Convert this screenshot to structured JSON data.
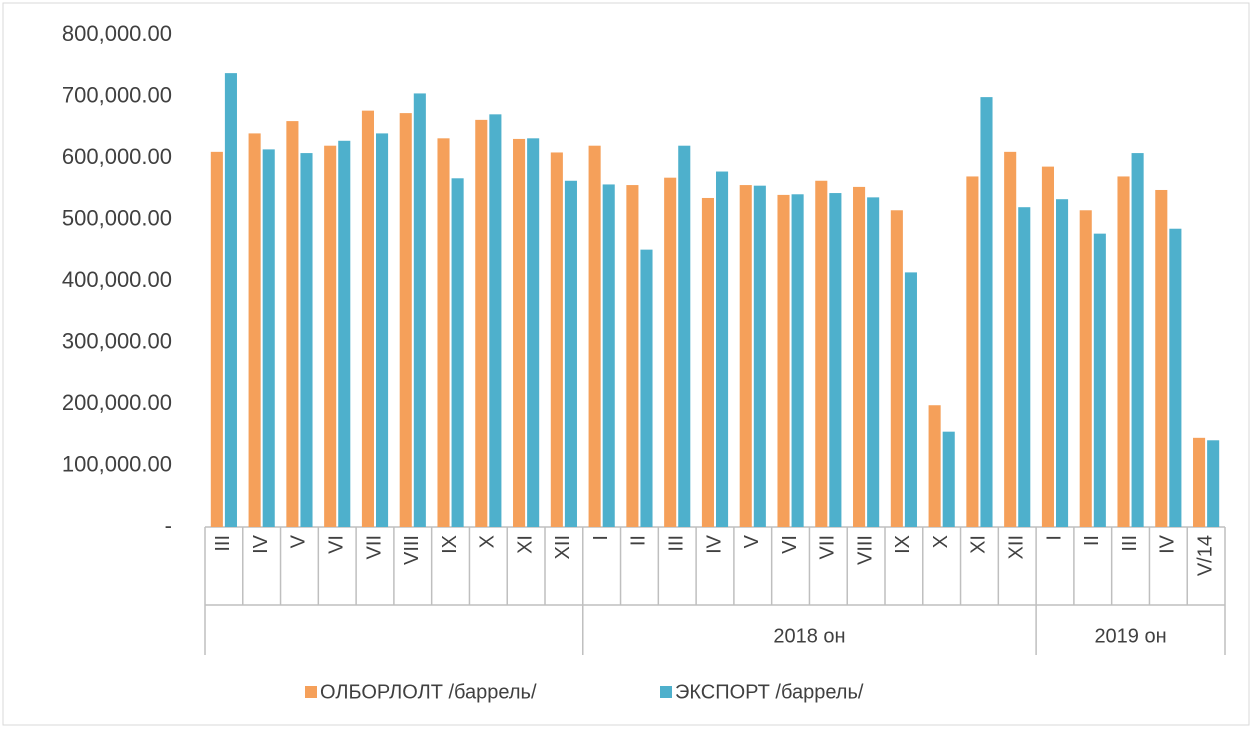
{
  "chart_data": {
    "type": "bar",
    "category_groups": [
      {
        "label": null,
        "categories": [
          "III",
          "IV",
          "V",
          "VI",
          "VII",
          "VIII",
          "IX",
          "X",
          "XI",
          "XII"
        ]
      },
      {
        "label": "2018 он",
        "categories": [
          "I",
          "II",
          "III",
          "IV",
          "V",
          "VI",
          "VII",
          "VIII",
          "IX",
          "X",
          "XI",
          "XII"
        ]
      },
      {
        "label": "2019 он",
        "categories": [
          "I",
          "II",
          "III",
          "IV",
          "V/14"
        ]
      }
    ],
    "series": [
      {
        "name": "ОЛБОРЛОЛТ /баррель/",
        "color": "#f5a05a",
        "values": [
          610000,
          640000,
          660000,
          620000,
          677000,
          673000,
          632000,
          662000,
          631000,
          609000,
          620000,
          556000,
          568000,
          535000,
          556000,
          540000,
          563000,
          553000,
          515000,
          198000,
          570000,
          610000,
          586000,
          515000,
          570000,
          548000,
          145000
        ]
      },
      {
        "name": "ЭКСПОРТ /баррель/",
        "color": "#4eb0cc",
        "values": [
          738000,
          614000,
          608000,
          628000,
          640000,
          705000,
          567000,
          671000,
          632000,
          563000,
          557000,
          451000,
          620000,
          578000,
          555000,
          541000,
          543000,
          536000,
          414000,
          155000,
          699000,
          520000,
          533000,
          477000,
          608000,
          485000,
          141000
        ]
      }
    ],
    "ylim": [
      0,
      800000
    ],
    "yticks": [
      {
        "value": 0,
        "label": "-"
      },
      {
        "value": 100000,
        "label": "100,000.00"
      },
      {
        "value": 200000,
        "label": "200,000.00"
      },
      {
        "value": 300000,
        "label": "300,000.00"
      },
      {
        "value": 400000,
        "label": "400,000.00"
      },
      {
        "value": 500000,
        "label": "500,000.00"
      },
      {
        "value": 600000,
        "label": "600,000.00"
      },
      {
        "value": 700000,
        "label": "700,000.00"
      },
      {
        "value": 800000,
        "label": "800,000.00"
      }
    ],
    "grid": false,
    "legend": "bottom"
  }
}
